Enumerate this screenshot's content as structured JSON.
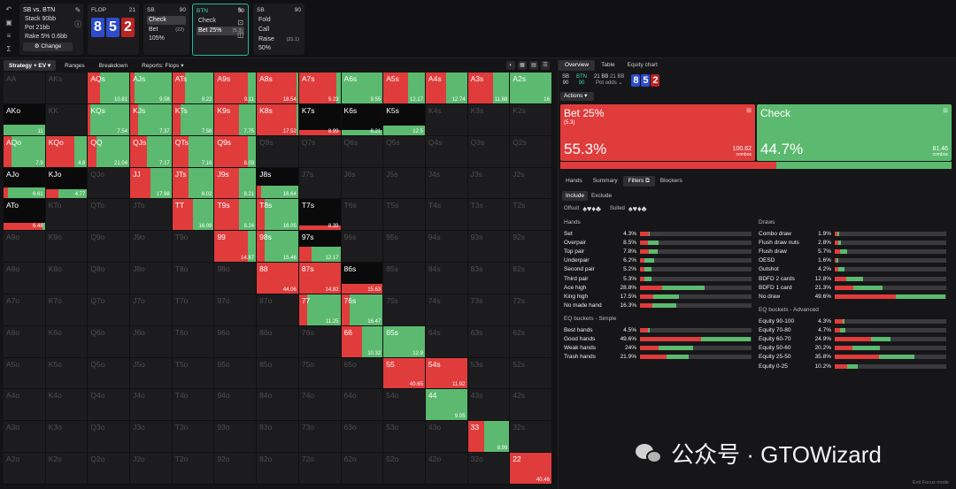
{
  "config": {
    "matchup": "SB vs. BTN",
    "stack": "Stack 90bb",
    "pot": "Pot 21bb",
    "rake": "Rake 5% 0.6bb",
    "change": "Change"
  },
  "flop": {
    "label": "FLOP",
    "num": "21",
    "cards": [
      "8",
      "5",
      "2"
    ]
  },
  "sb": {
    "pos": "SB",
    "stack": "90",
    "opts": [
      {
        "label": "Check",
        "sub": ""
      },
      {
        "label": "Bet 105%",
        "sub": "(22)"
      }
    ]
  },
  "btn": {
    "pos": "BTN",
    "stack": "90",
    "opts": [
      {
        "label": "Check",
        "sub": ""
      },
      {
        "label": "Bet 25%",
        "sub": "(5.3)"
      }
    ]
  },
  "sb2": {
    "pos": "SB",
    "stack": "90",
    "opts": [
      {
        "label": "Fold",
        "sub": ""
      },
      {
        "label": "Call",
        "sub": ""
      },
      {
        "label": "Raise 50%",
        "sub": "(21.1)"
      }
    ]
  },
  "leftTabs": [
    "Strategy + EV",
    "Ranges",
    "Breakdown",
    "Reports: Flops"
  ],
  "grid": {
    "ranks": [
      "A",
      "K",
      "Q",
      "J",
      "T",
      "9",
      "8",
      "7",
      "6",
      "5",
      "4",
      "3",
      "2"
    ],
    "cells": {
      "AQs": {
        "b": 0.3,
        "ev": "10.81"
      },
      "AJs": {
        "b": 0.1,
        "ev": "9.58"
      },
      "ATs": {
        "b": 0.3,
        "ev": "9.22"
      },
      "A9s": {
        "b": 0.8,
        "ev": "9.11"
      },
      "A8s": {
        "b": 0.95,
        "ev": "18.54"
      },
      "A7s": {
        "b": 0.9,
        "ev": "9.23"
      },
      "A6s": {
        "b": 0,
        "ev": "9.55"
      },
      "A5s": {
        "b": 0.6,
        "ev": "12.17"
      },
      "A4s": {
        "b": 0.5,
        "ev": "12.74"
      },
      "A3s": {
        "b": 0.6,
        "ev": "11.88"
      },
      "A2s": {
        "b": 0,
        "ev": "16"
      },
      "AKo": {
        "b": 0,
        "ev": "11",
        "h": 0.35
      },
      "KQs": {
        "b": 0.05,
        "ev": "7.54"
      },
      "KJs": {
        "b": 0.2,
        "ev": "7.37"
      },
      "KTs": {
        "b": 0.2,
        "ev": "7.58"
      },
      "K9s": {
        "b": 0.6,
        "ev": "7.75"
      },
      "K8s": {
        "b": 0.95,
        "ev": "17.52"
      },
      "K7s": {
        "b": 1,
        "ev": "8.99",
        "h": 0.15
      },
      "K6s": {
        "b": 0,
        "ev": "8.21",
        "h": 0.15
      },
      "K5s": {
        "b": 0,
        "ev": "12.5",
        "h": 0.3
      },
      "AQo": {
        "b": 0.2,
        "ev": "7.9"
      },
      "KQo": {
        "b": 0.7,
        "ev": "4.8"
      },
      "QQ": {
        "b": 0.2,
        "ev": "21.04"
      },
      "QJs": {
        "b": 0.4,
        "ev": "7.17"
      },
      "QTs": {
        "b": 0.4,
        "ev": "7.16"
      },
      "Q9s": {
        "b": 0.8,
        "ev": "8.03"
      },
      "AJo": {
        "b": 0.1,
        "ev": "6.61",
        "h": 0.35
      },
      "KJo": {
        "b": 0.3,
        "ev": "4.77",
        "h": 0.3
      },
      "JJ": {
        "b": 0.5,
        "ev": "17.98"
      },
      "JTs": {
        "b": 0.4,
        "ev": "8.02"
      },
      "J9s": {
        "b": 0.6,
        "ev": "8.21"
      },
      "J8s": {
        "b": 0.1,
        "ev": "16.64",
        "h": 0.4
      },
      "ATo": {
        "b": 0.95,
        "ev": "6.48",
        "h": 0.25
      },
      "TT": {
        "b": 0.5,
        "ev": "16.08"
      },
      "T9s": {
        "b": 0.6,
        "ev": "8.24"
      },
      "T8s": {
        "b": 0.2,
        "ev": "16.05"
      },
      "T7s": {
        "b": 1,
        "ev": "8.39",
        "h": 0.15
      },
      "99": {
        "b": 0.8,
        "ev": "14.87"
      },
      "98s": {
        "b": 0.2,
        "ev": "15.46"
      },
      "97s": {
        "b": 0.3,
        "ev": "12.17",
        "h": 0.5
      },
      "88": {
        "b": 1,
        "ev": "44.06"
      },
      "87s": {
        "b": 1,
        "ev": "14.82"
      },
      "86s": {
        "b": 1,
        "ev": "15.63",
        "h": 0.3
      },
      "77": {
        "b": 0.2,
        "ev": "11.25"
      },
      "76s": {
        "b": 0.2,
        "ev": "16.47"
      },
      "66": {
        "b": 0.5,
        "ev": "10.32"
      },
      "65s": {
        "b": 0,
        "ev": "12.9"
      },
      "55": {
        "b": 1,
        "ev": "40.65"
      },
      "54s": {
        "b": 1,
        "ev": "11.92"
      },
      "44": {
        "b": 0,
        "ev": "9.05"
      },
      "33": {
        "b": 0.4,
        "ev": "8.99"
      },
      "22": {
        "b": 1,
        "ev": "40.46"
      }
    }
  },
  "rightTabs": [
    "Overview",
    "Table",
    "Equity chart"
  ],
  "info": {
    "sb": "SB",
    "sbs": "90",
    "btn": "BTN",
    "btns": "90",
    "pot": "21 BB",
    "pot2": "21 BB",
    "potodds": "Pot odds",
    "cards": [
      "8",
      "5",
      "2"
    ]
  },
  "actionsLabel": "Actions",
  "bet": {
    "name": "Bet 25%",
    "size": "(5.3)",
    "pct": "55.3%",
    "combos": "100.62",
    "combosLabel": "combos",
    "freq": 0.553
  },
  "check": {
    "name": "Check",
    "pct": "44.7%",
    "combos": "81.46",
    "combosLabel": "combos",
    "freq": 0.447
  },
  "subTabs": [
    "Hands",
    "Summary",
    "Filters",
    "Blockers"
  ],
  "incex": [
    "Include",
    "Exclude"
  ],
  "offsuit": "Offsuit",
  "suited": "Suited",
  "offsuitGlyphs": "♠♥♦♣",
  "suitedGlyphs": "♠♥♦♣",
  "hands": {
    "title": "Hands",
    "rows": [
      {
        "n": "Set",
        "p": "4.3%",
        "w": 0.043,
        "b": 0.9
      },
      {
        "n": "Overpair",
        "p": "8.5%",
        "w": 0.085,
        "b": 0.4
      },
      {
        "n": "Top pair",
        "p": "7.8%",
        "w": 0.078,
        "b": 0.5
      },
      {
        "n": "Underpair",
        "p": "6.2%",
        "w": 0.062,
        "b": 0.3
      },
      {
        "n": "Second pair",
        "p": "5.2%",
        "w": 0.052,
        "b": 0.35
      },
      {
        "n": "Third pair",
        "p": "5.3%",
        "w": 0.053,
        "b": 0.4
      },
      {
        "n": "Ace high",
        "p": "28.8%",
        "w": 0.288,
        "b": 0.35
      },
      {
        "n": "King high",
        "p": "17.5%",
        "w": 0.175,
        "b": 0.35
      },
      {
        "n": "No made hand",
        "p": "16.3%",
        "w": 0.163,
        "b": 0.35
      }
    ]
  },
  "draws": {
    "title": "Draws",
    "rows": [
      {
        "n": "Combo draw",
        "p": "1.9%",
        "w": 0.019,
        "b": 0.6
      },
      {
        "n": "Flush draw nuts",
        "p": "2.8%",
        "w": 0.028,
        "b": 0.5
      },
      {
        "n": "Flush draw",
        "p": "5.7%",
        "w": 0.057,
        "b": 0.4
      },
      {
        "n": "OESD",
        "p": "1.6%",
        "w": 0.016,
        "b": 0.5
      },
      {
        "n": "Gutshot",
        "p": "4.2%",
        "w": 0.042,
        "b": 0.4
      },
      {
        "n": "BDFD 2 cards",
        "p": "12.8%",
        "w": 0.128,
        "b": 0.4
      },
      {
        "n": "BDFD 1 card",
        "p": "21.3%",
        "w": 0.213,
        "b": 0.4
      },
      {
        "n": "No draw",
        "p": "49.6%",
        "w": 0.496,
        "b": 0.55
      }
    ]
  },
  "eqSimple": {
    "title": "EQ buckets - Simple",
    "rows": [
      {
        "n": "Best hands",
        "p": "4.5%",
        "w": 0.045,
        "b": 0.8
      },
      {
        "n": "Good hands",
        "p": "49.6%",
        "w": 0.496,
        "b": 0.55
      },
      {
        "n": "Weak hands",
        "p": "24%",
        "w": 0.24,
        "b": 0.35
      },
      {
        "n": "Trash hands",
        "p": "21.9%",
        "w": 0.219,
        "b": 0.55
      }
    ]
  },
  "eqAdv": {
    "title": "EQ buckets - Advanced",
    "rows": [
      {
        "n": "Equity 90-100",
        "p": "4.3%",
        "w": 0.043,
        "b": 0.85
      },
      {
        "n": "Equity 70-80",
        "p": "4.7%",
        "w": 0.047,
        "b": 0.5
      },
      {
        "n": "Equity 60-70",
        "p": "24.9%",
        "w": 0.249,
        "b": 0.65
      },
      {
        "n": "Equity 50-60",
        "p": "20.2%",
        "w": 0.202,
        "b": 0.4
      },
      {
        "n": "Equity 25-50",
        "p": "35.8%",
        "w": 0.358,
        "b": 0.55
      },
      {
        "n": "Equity 0-25",
        "p": "10.2%",
        "w": 0.102,
        "b": 0.55
      }
    ]
  },
  "watermark": "公众号 · GTOWizard",
  "exitFocus": "Exit Focus mode",
  "colors": {
    "bet": "#e03c3c",
    "check": "#5bba6f",
    "accent": "#3fd2b3",
    "card": "#2d4ccc",
    "cardRed": "#b82424"
  }
}
